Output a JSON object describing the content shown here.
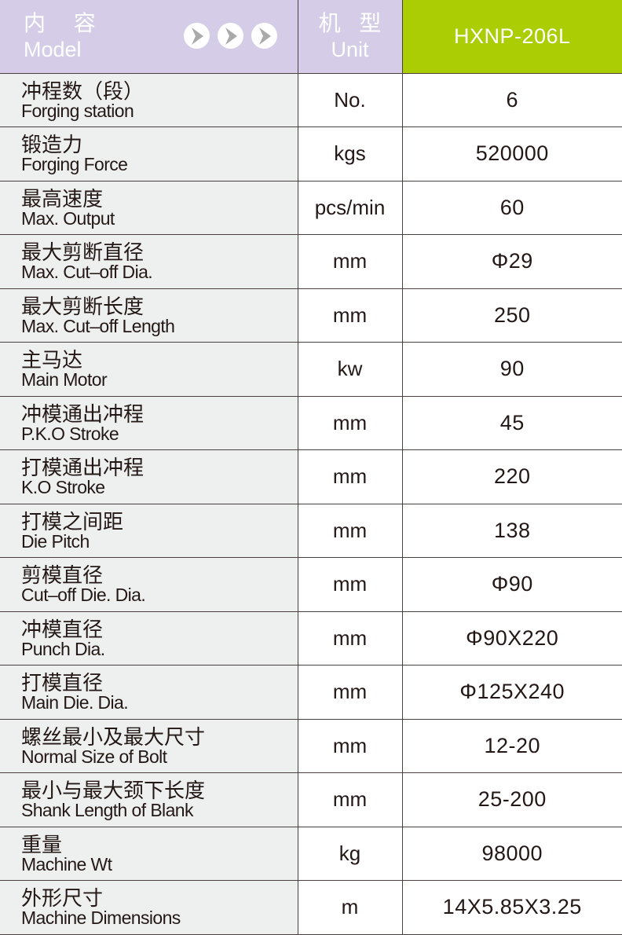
{
  "header": {
    "content_cn": "内 容",
    "content_en": "Model",
    "unit_cn": "机 型",
    "unit_en": "Unit",
    "model": "HXNP-206L",
    "accent_lavender": "#d5cde7",
    "accent_green": "#abcd03"
  },
  "rows": [
    {
      "cn": "冲程数（段）",
      "en": "Forging station",
      "unit": "No.",
      "value": "6"
    },
    {
      "cn": "锻造力",
      "en": "Forging Force",
      "unit": "kgs",
      "value": "520000"
    },
    {
      "cn": "最高速度",
      "en": "Max. Output",
      "unit": "pcs/min",
      "value": "60"
    },
    {
      "cn": "最大剪断直径",
      "en": "Max. Cut–off Dia.",
      "unit": "mm",
      "value": "Φ29"
    },
    {
      "cn": "最大剪断长度",
      "en": "Max. Cut–off Length",
      "unit": "mm",
      "value": "250"
    },
    {
      "cn": "主马达",
      "en": "Main Motor",
      "unit": "kw",
      "value": "90"
    },
    {
      "cn": "冲模通出冲程",
      "en": "P.K.O Stroke",
      "unit": "mm",
      "value": "45"
    },
    {
      "cn": "打模通出冲程",
      "en": "K.O Stroke",
      "unit": "mm",
      "value": "220"
    },
    {
      "cn": "打模之间距",
      "en": "Die Pitch",
      "unit": "mm",
      "value": "138"
    },
    {
      "cn": "剪模直径",
      "en": "Cut–off Die. Dia.",
      "unit": "mm",
      "value": "Φ90"
    },
    {
      "cn": "冲模直径",
      "en": "Punch Dia.",
      "unit": "mm",
      "value": "Φ90X220"
    },
    {
      "cn": "打模直径",
      "en": "Main Die. Dia.",
      "unit": "mm",
      "value": "Φ125X240"
    },
    {
      "cn": "螺丝最小及最大尺寸",
      "en": "Normal Size of Bolt",
      "unit": "mm",
      "value": "12-20"
    },
    {
      "cn": "最小与最大颈下长度",
      "en": "Shank Length of Blank",
      "unit": "mm",
      "value": "25-200"
    },
    {
      "cn": "重量",
      "en": "Machine Wt",
      "unit": "kg",
      "value": "98000"
    },
    {
      "cn": "外形尺寸",
      "en": "Machine Dimensions",
      "unit": "m",
      "value": "14X5.85X3.25"
    }
  ]
}
